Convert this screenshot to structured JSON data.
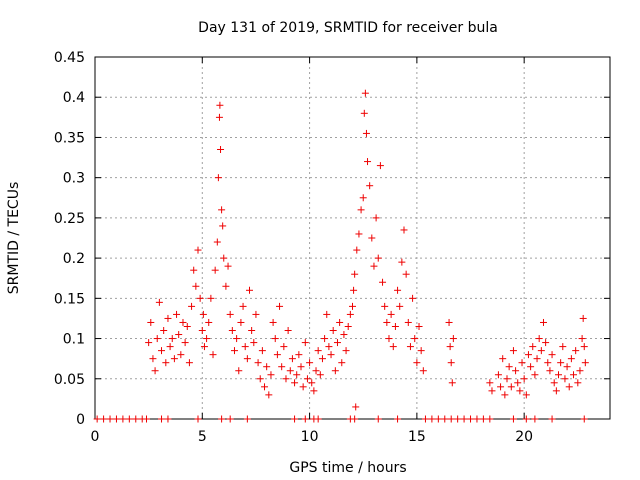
{
  "chart_data": {
    "type": "scatter",
    "title": "Day 131 of 2019, SRMTID for receiver bula",
    "xlabel": "GPS time / hours",
    "ylabel": "SRMTID / TECUs",
    "xlim": [
      0,
      24
    ],
    "ylim": [
      0,
      0.45
    ],
    "grid": true,
    "marker": "plus",
    "color": "#ee0000",
    "x_ticks": [
      0,
      5,
      10,
      15,
      20
    ],
    "x_tick_labels": [
      "0",
      "5",
      "10",
      "15",
      "20"
    ],
    "y_ticks": [
      0,
      0.05,
      0.1,
      0.15,
      0.2,
      0.25,
      0.3,
      0.35,
      0.4,
      0.45
    ],
    "y_tick_labels": [
      "0",
      "0.05",
      "0.1",
      "0.15",
      "0.2",
      "0.25",
      "0.3",
      "0.35",
      "0.4",
      "0.45"
    ],
    "series": [
      {
        "name": "SRMTID",
        "points": [
          [
            0.1,
            0
          ],
          [
            0.4,
            0
          ],
          [
            0.7,
            0
          ],
          [
            1.0,
            0
          ],
          [
            1.3,
            0
          ],
          [
            1.6,
            0
          ],
          [
            1.9,
            0
          ],
          [
            2.2,
            0
          ],
          [
            2.4,
            0
          ],
          [
            3.1,
            0
          ],
          [
            3.4,
            0
          ],
          [
            4.8,
            0
          ],
          [
            5.9,
            0
          ],
          [
            6.3,
            0
          ],
          [
            7.1,
            0
          ],
          [
            9.3,
            0
          ],
          [
            9.8,
            0
          ],
          [
            10.2,
            0
          ],
          [
            10.4,
            0
          ],
          [
            11.9,
            0
          ],
          [
            12.1,
            0
          ],
          [
            13.2,
            0
          ],
          [
            14.1,
            0
          ],
          [
            15.4,
            0
          ],
          [
            15.7,
            0
          ],
          [
            16.0,
            0
          ],
          [
            16.3,
            0
          ],
          [
            16.6,
            0
          ],
          [
            16.9,
            0
          ],
          [
            17.2,
            0
          ],
          [
            17.5,
            0
          ],
          [
            17.8,
            0
          ],
          [
            18.1,
            0
          ],
          [
            18.4,
            0
          ],
          [
            19.5,
            0
          ],
          [
            20.1,
            0
          ],
          [
            20.5,
            0
          ],
          [
            21.3,
            0
          ],
          [
            22.8,
            0
          ],
          [
            2.5,
            0.095
          ],
          [
            2.6,
            0.12
          ],
          [
            2.7,
            0.075
          ],
          [
            2.8,
            0.06
          ],
          [
            2.9,
            0.1
          ],
          [
            3.0,
            0.145
          ],
          [
            3.1,
            0.085
          ],
          [
            3.2,
            0.11
          ],
          [
            3.3,
            0.07
          ],
          [
            3.4,
            0.125
          ],
          [
            3.5,
            0.09
          ],
          [
            3.6,
            0.1
          ],
          [
            3.7,
            0.075
          ],
          [
            3.8,
            0.13
          ],
          [
            3.9,
            0.105
          ],
          [
            4.0,
            0.08
          ],
          [
            4.1,
            0.12
          ],
          [
            4.2,
            0.095
          ],
          [
            4.3,
            0.115
          ],
          [
            4.4,
            0.07
          ],
          [
            4.5,
            0.14
          ],
          [
            4.6,
            0.185
          ],
          [
            4.7,
            0.165
          ],
          [
            4.8,
            0.21
          ],
          [
            4.9,
            0.15
          ],
          [
            5.0,
            0.11
          ],
          [
            5.05,
            0.13
          ],
          [
            5.1,
            0.09
          ],
          [
            5.2,
            0.1
          ],
          [
            5.3,
            0.12
          ],
          [
            5.4,
            0.15
          ],
          [
            5.5,
            0.08
          ],
          [
            5.6,
            0.185
          ],
          [
            5.7,
            0.22
          ],
          [
            5.75,
            0.3
          ],
          [
            5.8,
            0.375
          ],
          [
            5.82,
            0.39
          ],
          [
            5.85,
            0.335
          ],
          [
            5.9,
            0.26
          ],
          [
            5.95,
            0.24
          ],
          [
            6.0,
            0.2
          ],
          [
            6.1,
            0.165
          ],
          [
            6.2,
            0.19
          ],
          [
            6.3,
            0.13
          ],
          [
            6.4,
            0.11
          ],
          [
            6.5,
            0.085
          ],
          [
            6.6,
            0.1
          ],
          [
            6.7,
            0.06
          ],
          [
            6.8,
            0.12
          ],
          [
            6.9,
            0.14
          ],
          [
            7.0,
            0.09
          ],
          [
            7.1,
            0.075
          ],
          [
            7.2,
            0.16
          ],
          [
            7.3,
            0.11
          ],
          [
            7.4,
            0.095
          ],
          [
            7.5,
            0.13
          ],
          [
            7.6,
            0.07
          ],
          [
            7.7,
            0.05
          ],
          [
            7.8,
            0.085
          ],
          [
            7.9,
            0.04
          ],
          [
            8.0,
            0.065
          ],
          [
            8.1,
            0.03
          ],
          [
            8.2,
            0.055
          ],
          [
            8.3,
            0.12
          ],
          [
            8.4,
            0.1
          ],
          [
            8.5,
            0.08
          ],
          [
            8.6,
            0.14
          ],
          [
            8.7,
            0.065
          ],
          [
            8.8,
            0.09
          ],
          [
            8.9,
            0.05
          ],
          [
            9.0,
            0.11
          ],
          [
            9.1,
            0.06
          ],
          [
            9.2,
            0.075
          ],
          [
            9.3,
            0.045
          ],
          [
            9.4,
            0.055
          ],
          [
            9.5,
            0.08
          ],
          [
            9.6,
            0.065
          ],
          [
            9.7,
            0.04
          ],
          [
            9.8,
            0.095
          ],
          [
            9.9,
            0.05
          ],
          [
            10.0,
            0.07
          ],
          [
            10.1,
            0.045
          ],
          [
            10.2,
            0.035
          ],
          [
            10.3,
            0.06
          ],
          [
            10.4,
            0.085
          ],
          [
            10.5,
            0.055
          ],
          [
            10.6,
            0.075
          ],
          [
            10.7,
            0.1
          ],
          [
            10.8,
            0.13
          ],
          [
            10.9,
            0.09
          ],
          [
            11.0,
            0.08
          ],
          [
            11.1,
            0.11
          ],
          [
            11.2,
            0.06
          ],
          [
            11.3,
            0.095
          ],
          [
            11.4,
            0.12
          ],
          [
            11.5,
            0.07
          ],
          [
            11.6,
            0.105
          ],
          [
            11.7,
            0.085
          ],
          [
            11.8,
            0.115
          ],
          [
            11.9,
            0.13
          ],
          [
            12.0,
            0.14
          ],
          [
            12.05,
            0.16
          ],
          [
            12.1,
            0.18
          ],
          [
            12.15,
            0.015
          ],
          [
            12.2,
            0.21
          ],
          [
            12.3,
            0.23
          ],
          [
            12.4,
            0.26
          ],
          [
            12.5,
            0.275
          ],
          [
            12.55,
            0.38
          ],
          [
            12.6,
            0.405
          ],
          [
            12.65,
            0.355
          ],
          [
            12.7,
            0.32
          ],
          [
            12.8,
            0.29
          ],
          [
            12.9,
            0.225
          ],
          [
            13.0,
            0.19
          ],
          [
            13.1,
            0.25
          ],
          [
            13.2,
            0.2
          ],
          [
            13.3,
            0.315
          ],
          [
            13.4,
            0.17
          ],
          [
            13.5,
            0.14
          ],
          [
            13.6,
            0.12
          ],
          [
            13.7,
            0.1
          ],
          [
            13.8,
            0.13
          ],
          [
            13.9,
            0.09
          ],
          [
            14.0,
            0.115
          ],
          [
            14.1,
            0.16
          ],
          [
            14.2,
            0.14
          ],
          [
            14.3,
            0.195
          ],
          [
            14.4,
            0.235
          ],
          [
            14.5,
            0.18
          ],
          [
            14.6,
            0.12
          ],
          [
            14.7,
            0.09
          ],
          [
            14.8,
            0.15
          ],
          [
            14.9,
            0.1
          ],
          [
            15.0,
            0.07
          ],
          [
            15.1,
            0.115
          ],
          [
            15.2,
            0.085
          ],
          [
            15.3,
            0.06
          ],
          [
            16.5,
            0.12
          ],
          [
            16.55,
            0.09
          ],
          [
            16.6,
            0.07
          ],
          [
            16.65,
            0.045
          ],
          [
            16.7,
            0.1
          ],
          [
            18.4,
            0.045
          ],
          [
            18.5,
            0.035
          ],
          [
            18.8,
            0.055
          ],
          [
            18.9,
            0.04
          ],
          [
            19.0,
            0.075
          ],
          [
            19.1,
            0.03
          ],
          [
            19.2,
            0.05
          ],
          [
            19.3,
            0.065
          ],
          [
            19.4,
            0.04
          ],
          [
            19.5,
            0.085
          ],
          [
            19.6,
            0.06
          ],
          [
            19.7,
            0.045
          ],
          [
            19.8,
            0.035
          ],
          [
            19.9,
            0.07
          ],
          [
            20.0,
            0.05
          ],
          [
            20.1,
            0.03
          ],
          [
            20.2,
            0.08
          ],
          [
            20.3,
            0.065
          ],
          [
            20.4,
            0.09
          ],
          [
            20.5,
            0.055
          ],
          [
            20.6,
            0.075
          ],
          [
            20.7,
            0.1
          ],
          [
            20.8,
            0.085
          ],
          [
            20.9,
            0.12
          ],
          [
            21.0,
            0.095
          ],
          [
            21.1,
            0.07
          ],
          [
            21.2,
            0.06
          ],
          [
            21.3,
            0.08
          ],
          [
            21.4,
            0.045
          ],
          [
            21.5,
            0.035
          ],
          [
            21.6,
            0.055
          ],
          [
            21.7,
            0.07
          ],
          [
            21.8,
            0.09
          ],
          [
            21.9,
            0.05
          ],
          [
            22.0,
            0.065
          ],
          [
            22.1,
            0.04
          ],
          [
            22.2,
            0.075
          ],
          [
            22.3,
            0.055
          ],
          [
            22.4,
            0.085
          ],
          [
            22.5,
            0.045
          ],
          [
            22.6,
            0.06
          ],
          [
            22.7,
            0.1
          ],
          [
            22.75,
            0.125
          ],
          [
            22.8,
            0.09
          ],
          [
            22.85,
            0.07
          ]
        ]
      }
    ]
  }
}
